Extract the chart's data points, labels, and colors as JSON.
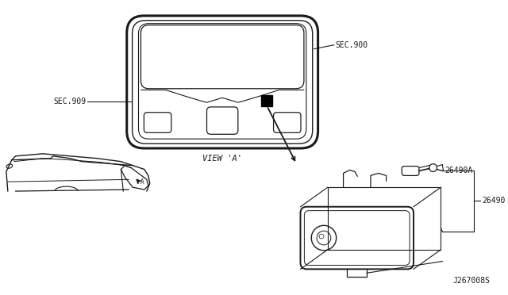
{
  "bg_color": "#ffffff",
  "line_color": "#1a1a1a",
  "text_color": "#1a1a1a",
  "diagram_id": "J267008S",
  "labels": {
    "sec900": "SEC.900",
    "sec909": "SEC.909",
    "view_a": "VIEW 'A'",
    "part26490A": "26490A",
    "part26490": "26490"
  },
  "fig_width": 6.4,
  "fig_height": 3.72,
  "dpi": 100
}
